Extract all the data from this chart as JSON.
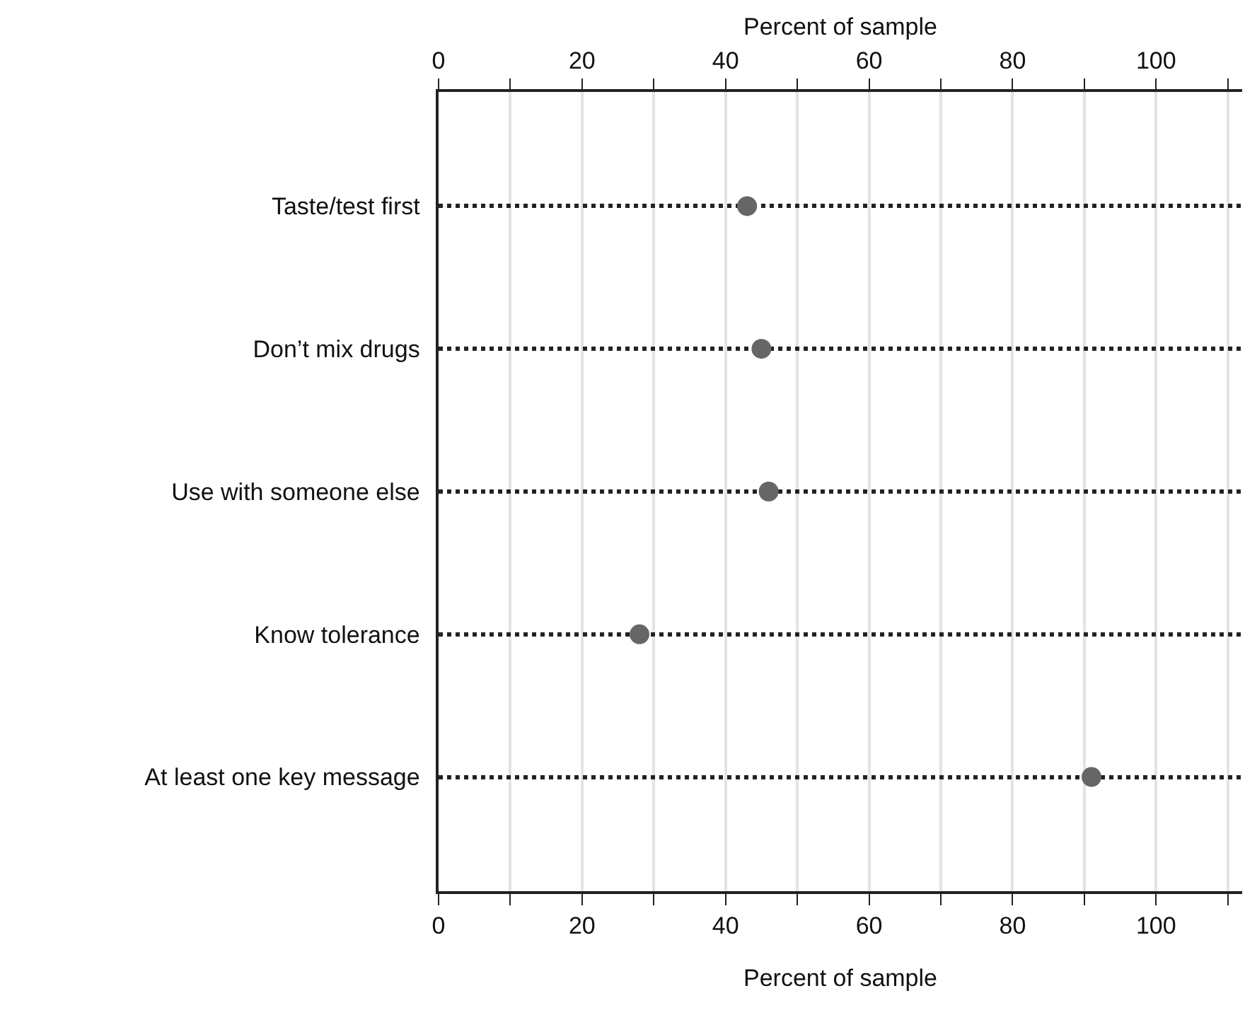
{
  "chart_data": {
    "type": "scatter",
    "orientation": "horizontal",
    "xlabel": "Percent of sample",
    "x2label": "Percent of sample",
    "categories": [
      "Taste/test first",
      "Don’t mix drugs",
      "Use with someone else",
      "Know tolerance",
      "At least one key message"
    ],
    "values": [
      43,
      45,
      46,
      28,
      91
    ],
    "color": "#666666",
    "marker": "circle",
    "line_style": "dotted",
    "grid": true,
    "xlim": [
      0,
      112
    ],
    "xticks": [
      0,
      {
        "value": 10,
        "label": null
      },
      20,
      {
        "value": 30,
        "label": null
      },
      40,
      {
        "value": 50,
        "label": null
      },
      60,
      {
        "value": 70,
        "label": null
      },
      80,
      {
        "value": 90,
        "label": null
      },
      100,
      {
        "value": 110,
        "label": null
      }
    ],
    "x2lim": [
      0,
      112
    ],
    "x2ticks": [
      0,
      {
        "value": 10,
        "label": null
      },
      20,
      {
        "value": 30,
        "label": null
      },
      40,
      {
        "value": 50,
        "label": null
      },
      60,
      {
        "value": 70,
        "label": null
      },
      80,
      {
        "value": 90,
        "label": null
      },
      100,
      {
        "value": 110,
        "label": null
      }
    ]
  }
}
